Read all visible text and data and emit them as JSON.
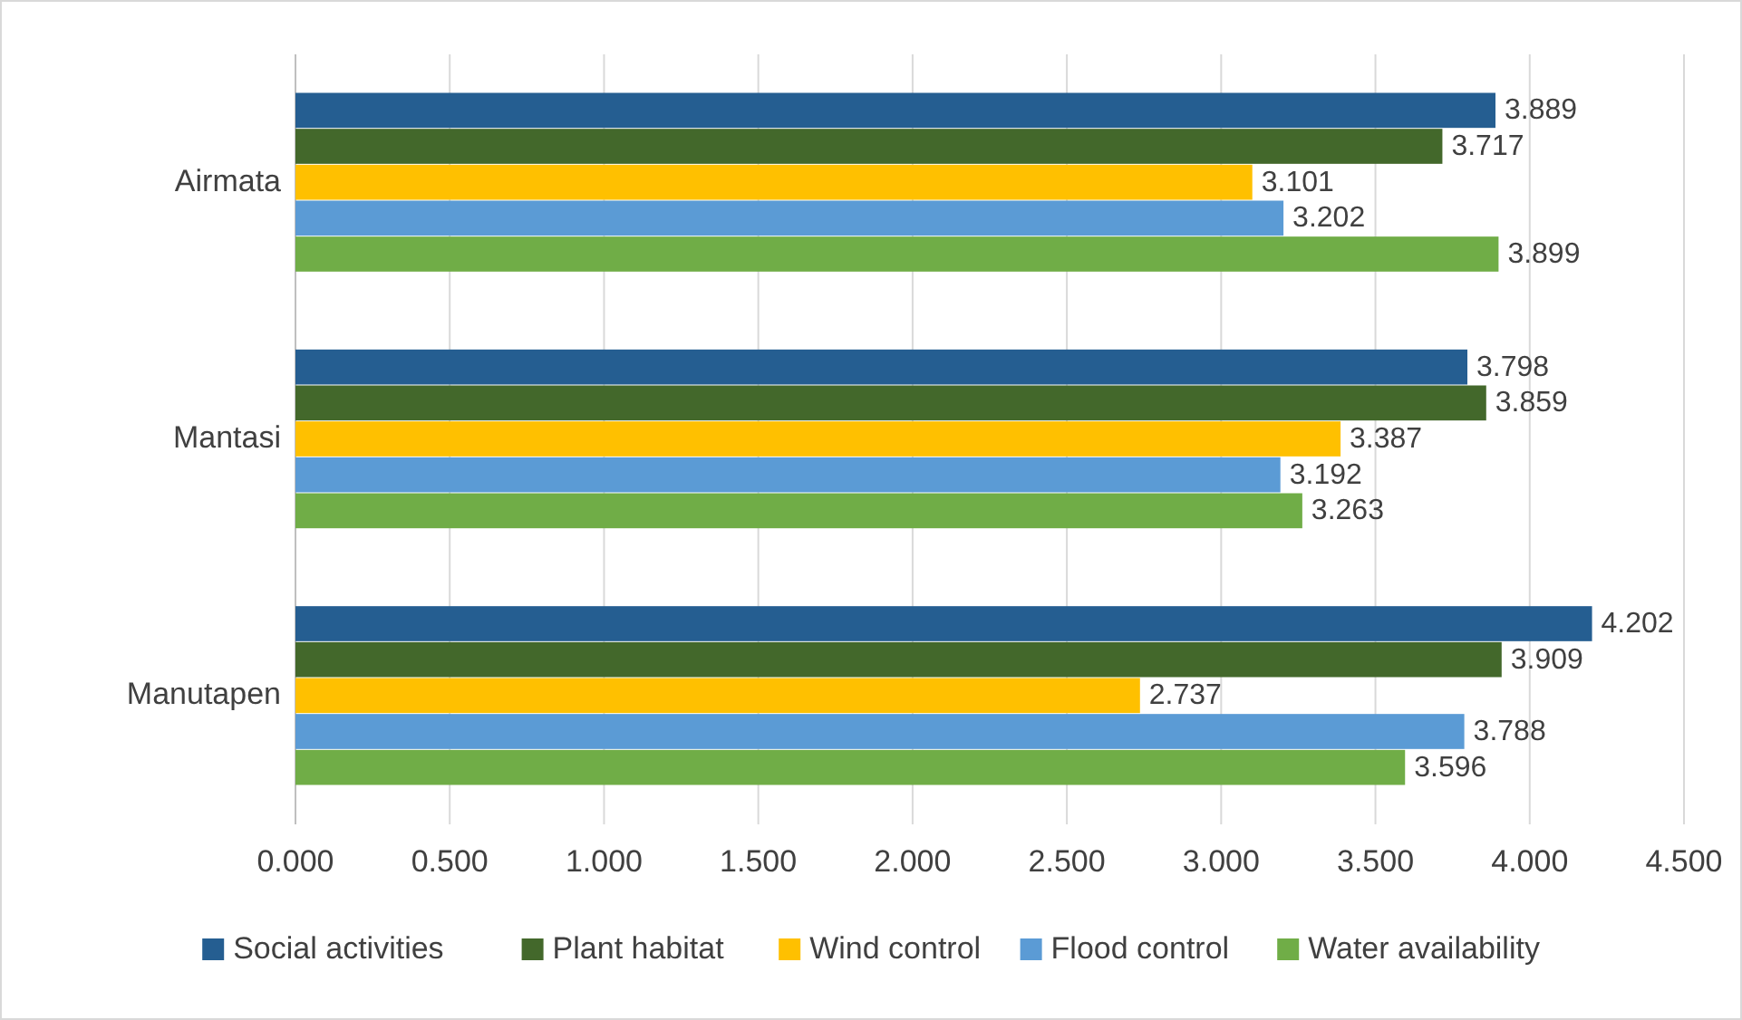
{
  "chart_data": {
    "type": "bar",
    "orientation": "horizontal",
    "categories": [
      "Airmata",
      "Mantasi",
      "Manutapen"
    ],
    "series": [
      {
        "name": "Social activities",
        "color": "#255e91",
        "values": [
          3.889,
          3.798,
          4.202
        ]
      },
      {
        "name": "Plant habitat",
        "color": "#43682b",
        "values": [
          3.717,
          3.859,
          3.909
        ]
      },
      {
        "name": "Wind control",
        "color": "#ffc000",
        "values": [
          3.101,
          3.387,
          2.737
        ]
      },
      {
        "name": "Flood control",
        "color": "#5b9bd5",
        "values": [
          3.202,
          3.192,
          3.788
        ]
      },
      {
        "name": "Water availability",
        "color": "#70ad47",
        "values": [
          3.899,
          3.263,
          3.596
        ]
      }
    ],
    "xlim": [
      0,
      4.5
    ],
    "xticks": [
      {
        "value": 0,
        "label": "0.000"
      },
      {
        "value": 0.5,
        "label": "0.500"
      },
      {
        "value": 1,
        "label": "1.000"
      },
      {
        "value": 1.5,
        "label": "1.500"
      },
      {
        "value": 2,
        "label": "2.000"
      },
      {
        "value": 2.5,
        "label": "2.500"
      },
      {
        "value": 3,
        "label": "3.000"
      },
      {
        "value": 3.5,
        "label": "3.500"
      },
      {
        "value": 4,
        "label": "4.000"
      },
      {
        "value": 4.5,
        "label": "4.500"
      }
    ],
    "grid": "x",
    "legend": "bottom",
    "data_labels": true
  }
}
